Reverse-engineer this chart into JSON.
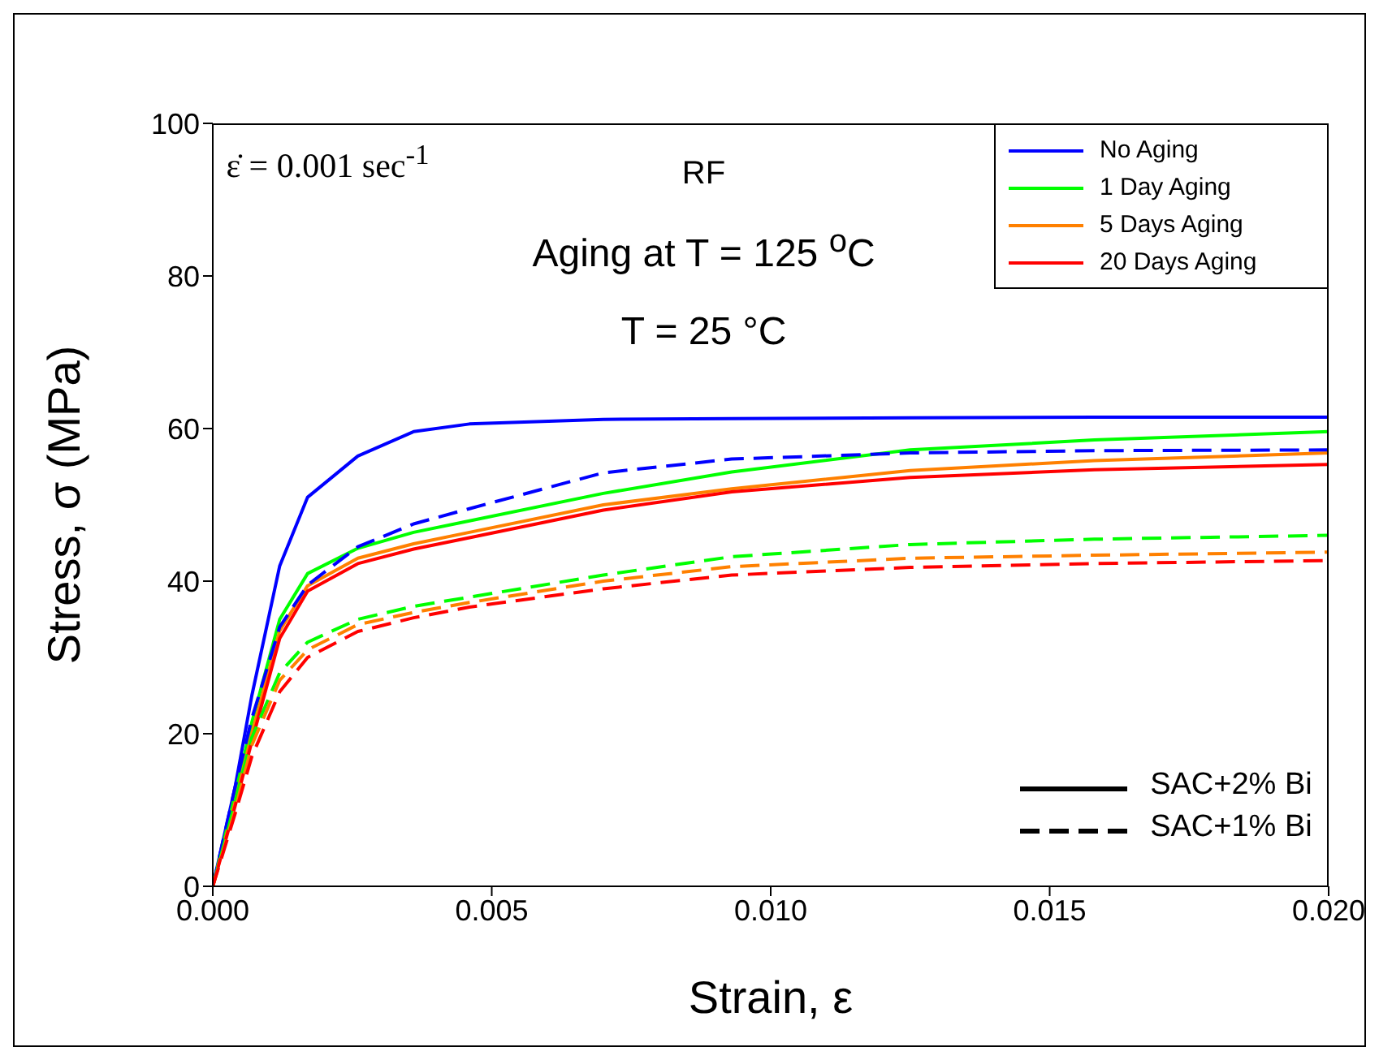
{
  "chart_data": {
    "type": "line",
    "xlabel": "Strain, ε",
    "ylabel": "Stress, σ (MPa)",
    "x": [
      0,
      0.0004,
      0.0007,
      0.0012,
      0.0017,
      0.0026,
      0.0036,
      0.0046,
      0.007,
      0.0093,
      0.0125,
      0.0158,
      0.02
    ],
    "series": [
      {
        "name": "No Aging",
        "color": "#0000ff",
        "line_style": "solid",
        "values": [
          0,
          13,
          25,
          42,
          51,
          56.4,
          59.6,
          60.6,
          61.2,
          61.3,
          61.4,
          61.5,
          61.5
        ]
      },
      {
        "name": "1 Day Aging",
        "color": "#00ff00",
        "line_style": "solid",
        "values": [
          0,
          12,
          21.5,
          35,
          41,
          44.3,
          46.4,
          47.9,
          51.5,
          54.3,
          57.2,
          58.5,
          59.6
        ]
      },
      {
        "name": "5 Days Aging",
        "color": "#ff8000",
        "line_style": "solid",
        "values": [
          0,
          11,
          20,
          33.5,
          39.4,
          43,
          44.9,
          46.4,
          50,
          52.1,
          54.5,
          55.8,
          56.8
        ]
      },
      {
        "name": "20 Days Aging",
        "color": "#ff0000",
        "line_style": "solid",
        "values": [
          0,
          10.5,
          19,
          32.5,
          38.7,
          42.3,
          44.2,
          45.7,
          49.3,
          51.7,
          53.6,
          54.6,
          55.3
        ]
      },
      {
        "color": "#0000ff",
        "line_style": "dashed",
        "values": [
          0,
          13,
          22,
          34,
          39.5,
          44.5,
          47.5,
          49.5,
          54.2,
          56,
          56.8,
          57.1,
          57.2
        ]
      },
      {
        "color": "#00ff00",
        "line_style": "dashed",
        "values": [
          0,
          11,
          19.5,
          28,
          32,
          35,
          36.7,
          37.9,
          40.8,
          43.2,
          44.8,
          45.5,
          46
        ]
      },
      {
        "color": "#ff8000",
        "line_style": "dashed",
        "values": [
          0,
          10,
          18.5,
          27,
          31,
          34.3,
          35.9,
          37.2,
          40,
          41.9,
          43,
          43.4,
          43.8
        ]
      },
      {
        "color": "#ff0000",
        "line_style": "dashed",
        "values": [
          0,
          9.5,
          17,
          25.5,
          30,
          33.4,
          35.2,
          36.6,
          39,
          40.8,
          41.8,
          42.3,
          42.7
        ]
      }
    ],
    "xlim": [
      0,
      0.02
    ],
    "xticks": [
      {
        "value": 0,
        "label": "0.000"
      },
      {
        "value": 0.005,
        "label": "0.005"
      },
      {
        "value": 0.01,
        "label": "0.010"
      },
      {
        "value": 0.015,
        "label": "0.015"
      },
      {
        "value": 0.02,
        "label": "0.020"
      }
    ],
    "ylim": [
      0,
      100
    ],
    "yticks": [
      0,
      20,
      40,
      60,
      80,
      100
    ],
    "grid": false,
    "marker": "none",
    "legend": "top right",
    "annotations": [
      "ε̇ = 0.001 sec$^{-1}$",
      "RF",
      "Aging at T = 125 $^{o}$C",
      "T = 25 °C",
      "SAC+2% Bi",
      "SAC+1% Bi"
    ]
  }
}
